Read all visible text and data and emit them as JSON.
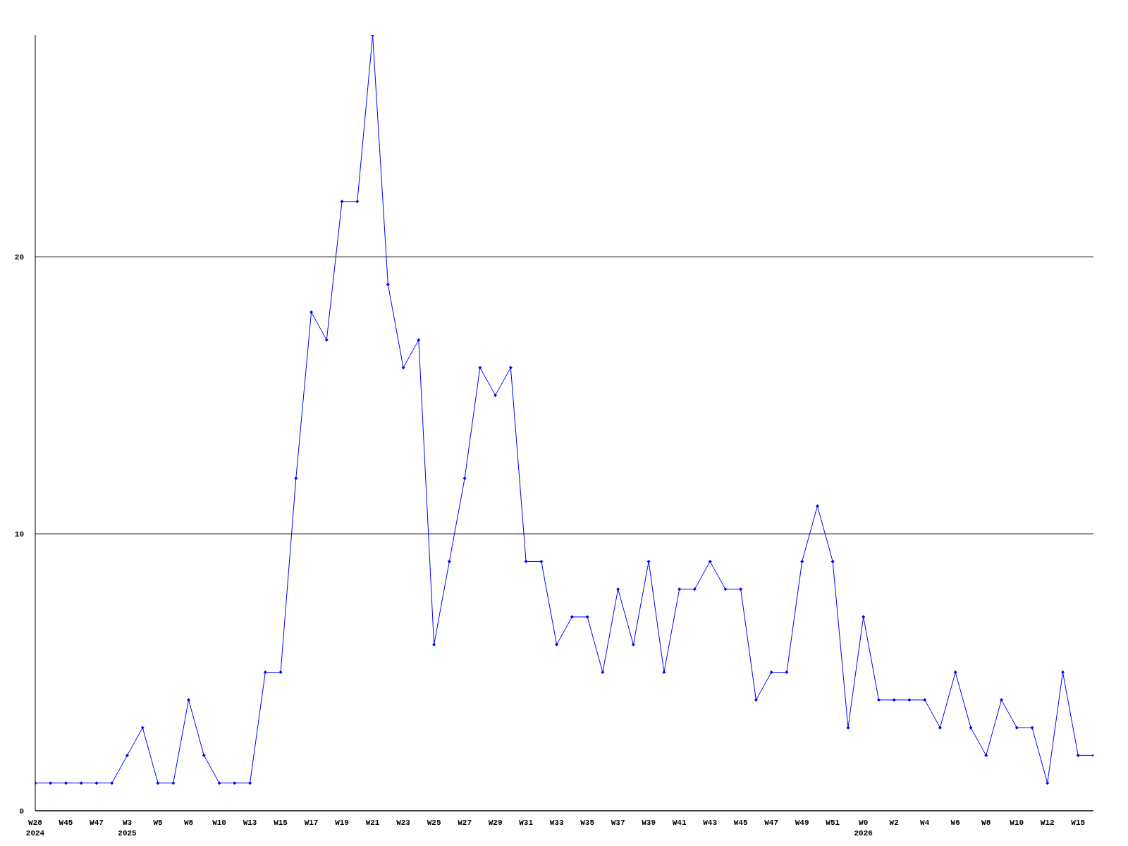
{
  "chart_data": {
    "type": "line",
    "categories": [
      "W28\n2024",
      null,
      "W45",
      null,
      "W47",
      null,
      "W3\n2025",
      null,
      "W5",
      null,
      "W8",
      null,
      "W10",
      null,
      "W13",
      null,
      "W15",
      null,
      "W17",
      null,
      "W19",
      null,
      "W21",
      null,
      "W23",
      null,
      "W25",
      null,
      "W27",
      null,
      "W29",
      null,
      "W31",
      null,
      "W33",
      null,
      "W35",
      null,
      "W37",
      null,
      "W39",
      null,
      "W41",
      null,
      "W43",
      null,
      "W45",
      null,
      "W47",
      null,
      "W49",
      null,
      "W51",
      null,
      "W0\n2026",
      null,
      "W2",
      null,
      "W4",
      null,
      "W6",
      null,
      "W8",
      null,
      "W10",
      null,
      "W12",
      null,
      "W15",
      null
    ],
    "series": [
      {
        "color": "#0000ff",
        "values": [
          1,
          1,
          1,
          1,
          1,
          1,
          2,
          3,
          1,
          1,
          4,
          2,
          1,
          1,
          1,
          5,
          5,
          12,
          18,
          17,
          22,
          22,
          28,
          19,
          16,
          17,
          6,
          9,
          12,
          16,
          15,
          16,
          9,
          9,
          6,
          7,
          7,
          5,
          8,
          6,
          9,
          5,
          8,
          8,
          9,
          8,
          8,
          4,
          5,
          5,
          9,
          11,
          9,
          3,
          7,
          4,
          4,
          4,
          4,
          3,
          5,
          3,
          2,
          4,
          3,
          3,
          1,
          5,
          2,
          2
        ]
      }
    ],
    "ylim": [
      0,
      28
    ],
    "yticks": [
      0,
      10,
      20
    ],
    "grid": "y",
    "marker": "diamond",
    "line_style": "solid"
  }
}
